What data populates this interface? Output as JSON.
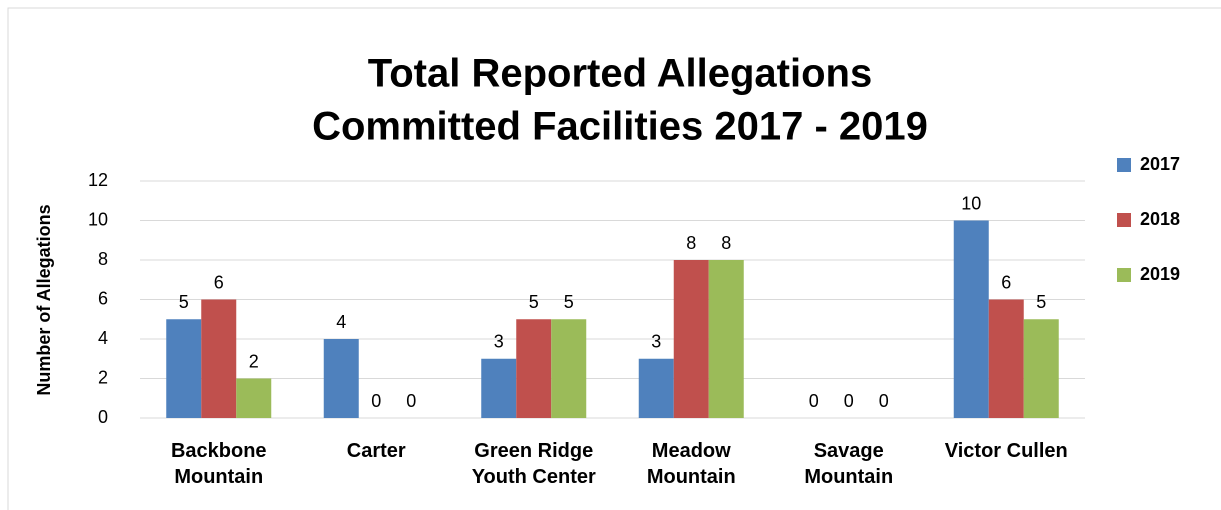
{
  "chart_data": {
    "type": "bar",
    "title": [
      "Total Reported Allegations",
      "Committed Facilities 2017 - 2019"
    ],
    "y_label": "Number of Allegations",
    "categories": [
      "Backbone Mountain",
      "Carter",
      "Green Ridge Youth Center",
      "Meadow Mountain",
      "Savage Mountain",
      "Victor Cullen"
    ],
    "series": [
      {
        "name": "2017",
        "color": "#4f81bd",
        "values": [
          5,
          4,
          3,
          3,
          0,
          10
        ]
      },
      {
        "name": "2018",
        "color": "#c0504d",
        "values": [
          6,
          0,
          5,
          8,
          0,
          6
        ]
      },
      {
        "name": "2019",
        "color": "#9bbb59",
        "values": [
          2,
          0,
          5,
          8,
          0,
          5
        ]
      }
    ],
    "ylim": [
      0,
      12
    ],
    "yticks": [
      0,
      2,
      4,
      6,
      8,
      10,
      12
    ],
    "grid": true,
    "legend": "right"
  }
}
